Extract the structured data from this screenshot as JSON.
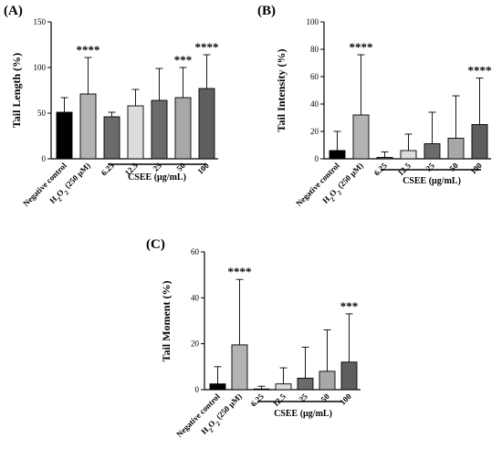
{
  "chart_data": [
    {
      "panel": "(A)",
      "type": "bar",
      "ylabel": "Tail Length (%)",
      "ylim": [
        0,
        150
      ],
      "yticks": [
        0,
        50,
        100,
        150
      ],
      "categories": [
        "Negative control",
        "H2O2 (250 µM)",
        "6.25",
        "12.5",
        "25",
        "50",
        "100"
      ],
      "values": [
        51,
        71,
        46,
        58,
        64,
        67,
        77
      ],
      "errors": [
        16,
        40,
        5,
        18,
        35,
        33,
        37
      ],
      "significance": [
        "",
        "****",
        "",
        "",
        "",
        "***",
        "****"
      ],
      "bar_colors": [
        "#000000",
        "#b3b3b3",
        "#6b6b6b",
        "#dcdcdc",
        "#6b6b6b",
        "#a8a8a8",
        "#5e5e5e"
      ],
      "group_label": "CSEE (µg/mL)"
    },
    {
      "panel": "(B)",
      "type": "bar",
      "ylabel": "Tail Intensity (%)",
      "ylim": [
        0,
        100
      ],
      "yticks": [
        0,
        20,
        40,
        60,
        80,
        100
      ],
      "categories": [
        "Negative control",
        "H2O2 (250 µM)",
        "6.25",
        "12.5",
        "25",
        "50",
        "100"
      ],
      "values": [
        6,
        32,
        1,
        6,
        11,
        15,
        25
      ],
      "errors": [
        14,
        44,
        4,
        12,
        23,
        31,
        34
      ],
      "significance": [
        "",
        "****",
        "",
        "",
        "",
        "",
        "****"
      ],
      "bar_colors": [
        "#000000",
        "#b3b3b3",
        "#6b6b6b",
        "#dcdcdc",
        "#6b6b6b",
        "#a8a8a8",
        "#5e5e5e"
      ],
      "group_label": "CSEE (µg/mL)"
    },
    {
      "panel": "(C)",
      "type": "bar",
      "ylabel": "Tail Moment (%)",
      "ylim": [
        0,
        60
      ],
      "yticks": [
        0,
        20,
        40,
        60
      ],
      "categories": [
        "Negative control",
        "H2O2 (250 µM)",
        "6.25",
        "12.5",
        "25",
        "50",
        "100"
      ],
      "values": [
        2.5,
        19.5,
        0.3,
        2.5,
        5,
        8,
        12
      ],
      "errors": [
        7.5,
        28.5,
        1.2,
        7,
        13.5,
        18,
        21
      ],
      "significance": [
        "",
        "****",
        "",
        "",
        "",
        "",
        "***"
      ],
      "bar_colors": [
        "#000000",
        "#b3b3b3",
        "#6b6b6b",
        "#dcdcdc",
        "#6b6b6b",
        "#a8a8a8",
        "#5e5e5e"
      ],
      "group_label": "CSEE (µg/mL)"
    }
  ]
}
